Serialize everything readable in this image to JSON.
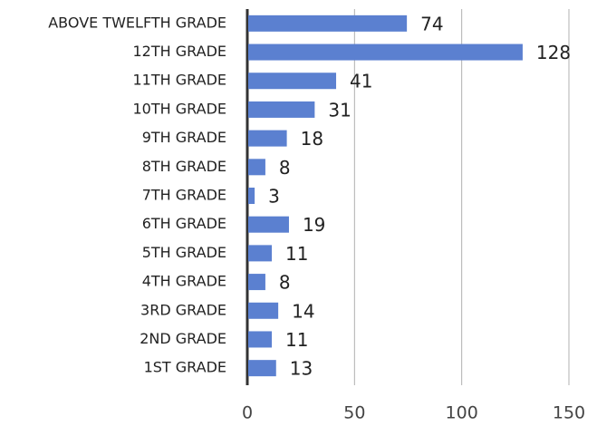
{
  "chart_data": {
    "type": "barh",
    "categories": [
      "ABOVE TWELFTH GRADE",
      "12TH GRADE",
      "11TH GRADE",
      "10TH GRADE",
      "9TH GRADE",
      "8TH GRADE",
      "7TH GRADE",
      "6TH GRADE",
      "5TH GRADE",
      "4TH GRADE",
      "3RD GRADE",
      "2ND GRADE",
      "1ST GRADE"
    ],
    "values": [
      74,
      128,
      41,
      31,
      18,
      8,
      3,
      19,
      11,
      8,
      14,
      11,
      13
    ],
    "color": "#5b80d0",
    "xlim": [
      0,
      150
    ],
    "xticks": [
      0,
      50,
      100,
      150
    ],
    "grid": true
  }
}
